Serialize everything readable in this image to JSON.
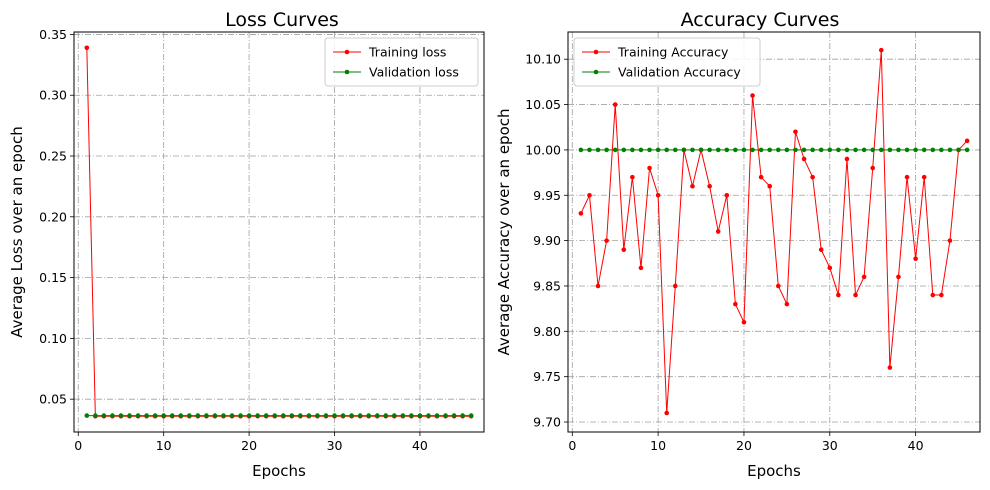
{
  "chart_data": [
    {
      "type": "line",
      "title": "Loss Curves",
      "xlabel": "Epochs",
      "ylabel": "Average Loss over an epoch",
      "xlim": [
        -0.5,
        47.5
      ],
      "ylim": [
        0.023,
        0.352
      ],
      "xticks": [
        0,
        10,
        20,
        30,
        40
      ],
      "xtick_labels": [
        "0",
        "10",
        "20",
        "30",
        "40"
      ],
      "yticks": [
        0.05,
        0.1,
        0.15,
        0.2,
        0.25,
        0.3,
        0.35
      ],
      "ytick_labels": [
        "0.05",
        "0.10",
        "0.15",
        "0.20",
        "0.25",
        "0.30",
        "0.35"
      ],
      "grid": true,
      "legend_position": "top-right",
      "x": [
        1,
        2,
        3,
        4,
        5,
        6,
        7,
        8,
        9,
        10,
        11,
        12,
        13,
        14,
        15,
        16,
        17,
        18,
        19,
        20,
        21,
        22,
        23,
        24,
        25,
        26,
        27,
        28,
        29,
        30,
        31,
        32,
        33,
        34,
        35,
        36,
        37,
        38,
        39,
        40,
        41,
        42,
        43,
        44,
        45,
        46
      ],
      "series": [
        {
          "name": "Training loss",
          "color": "#ff0000",
          "values": [
            0.339,
            0.036,
            0.036,
            0.036,
            0.036,
            0.036,
            0.036,
            0.036,
            0.036,
            0.036,
            0.036,
            0.036,
            0.036,
            0.036,
            0.036,
            0.036,
            0.036,
            0.036,
            0.036,
            0.036,
            0.036,
            0.036,
            0.036,
            0.036,
            0.036,
            0.036,
            0.036,
            0.036,
            0.036,
            0.036,
            0.036,
            0.036,
            0.036,
            0.036,
            0.036,
            0.036,
            0.036,
            0.036,
            0.036,
            0.036,
            0.036,
            0.036,
            0.036,
            0.036,
            0.036,
            0.036
          ]
        },
        {
          "name": "Validation loss",
          "color": "#008000",
          "values": [
            0.0365,
            0.0365,
            0.0365,
            0.0365,
            0.0365,
            0.0365,
            0.0365,
            0.0365,
            0.0365,
            0.0365,
            0.0365,
            0.0365,
            0.0365,
            0.0365,
            0.0365,
            0.0365,
            0.0365,
            0.0365,
            0.0365,
            0.0365,
            0.0365,
            0.0365,
            0.0365,
            0.0365,
            0.0365,
            0.0365,
            0.0365,
            0.0365,
            0.0365,
            0.0365,
            0.0365,
            0.0365,
            0.0365,
            0.0365,
            0.0365,
            0.0365,
            0.0365,
            0.0365,
            0.0365,
            0.0365,
            0.0365,
            0.0365,
            0.0365,
            0.0365,
            0.0365,
            0.0365
          ]
        }
      ]
    },
    {
      "type": "line",
      "title": "Accuracy Curves",
      "xlabel": "Epochs",
      "ylabel": "Average Accuracy over an epoch",
      "xlim": [
        -0.5,
        47.5
      ],
      "ylim": [
        9.689,
        10.13
      ],
      "xticks": [
        0,
        10,
        20,
        30,
        40
      ],
      "xtick_labels": [
        "0",
        "10",
        "20",
        "30",
        "40"
      ],
      "yticks": [
        9.7,
        9.75,
        9.8,
        9.85,
        9.9,
        9.95,
        10.0,
        10.05,
        10.1
      ],
      "ytick_labels": [
        "9.70",
        "9.75",
        "9.80",
        "9.85",
        "9.90",
        "9.95",
        "10.00",
        "10.05",
        "10.10"
      ],
      "grid": true,
      "legend_position": "top-left",
      "x": [
        1,
        2,
        3,
        4,
        5,
        6,
        7,
        8,
        9,
        10,
        11,
        12,
        13,
        14,
        15,
        16,
        17,
        18,
        19,
        20,
        21,
        22,
        23,
        24,
        25,
        26,
        27,
        28,
        29,
        30,
        31,
        32,
        33,
        34,
        35,
        36,
        37,
        38,
        39,
        40,
        41,
        42,
        43,
        44,
        45,
        46
      ],
      "series": [
        {
          "name": "Training Accuracy",
          "color": "#ff0000",
          "values": [
            9.93,
            9.95,
            9.85,
            9.9,
            10.05,
            9.89,
            9.97,
            9.87,
            9.98,
            9.95,
            9.71,
            9.85,
            10.0,
            9.96,
            10.0,
            9.96,
            9.91,
            9.95,
            9.83,
            9.81,
            10.06,
            9.97,
            9.96,
            9.85,
            9.83,
            10.02,
            9.99,
            9.97,
            9.89,
            9.87,
            9.84,
            9.99,
            9.84,
            9.86,
            9.98,
            10.11,
            9.76,
            9.86,
            9.97,
            9.88,
            9.97,
            9.84,
            9.84,
            9.9,
            10.0,
            10.01
          ]
        },
        {
          "name": "Validation Accuracy",
          "color": "#008000",
          "values": [
            10.0,
            10.0,
            10.0,
            10.0,
            10.0,
            10.0,
            10.0,
            10.0,
            10.0,
            10.0,
            10.0,
            10.0,
            10.0,
            10.0,
            10.0,
            10.0,
            10.0,
            10.0,
            10.0,
            10.0,
            10.0,
            10.0,
            10.0,
            10.0,
            10.0,
            10.0,
            10.0,
            10.0,
            10.0,
            10.0,
            10.0,
            10.0,
            10.0,
            10.0,
            10.0,
            10.0,
            10.0,
            10.0,
            10.0,
            10.0,
            10.0,
            10.0,
            10.0,
            10.0,
            10.0,
            10.0
          ]
        }
      ]
    }
  ]
}
